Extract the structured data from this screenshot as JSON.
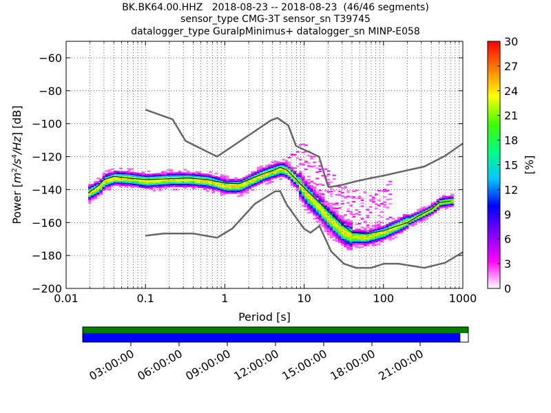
{
  "chart_data": {
    "type": "heatmap",
    "title_lines": [
      "BK.BK64.00.HHZ   2018-08-23 -- 2018-08-23  (46/46 segments)",
      "sensor_type CMG-3T sensor_sn T39745",
      "datalogger_type GuralpMinimus+ datalogger_sn MINP-E058"
    ],
    "xlabel": "Period [s]",
    "ylabel_parts": [
      "Power [",
      "m",
      "2",
      "/",
      "s",
      "4",
      "/",
      "Hz",
      "] [dB]"
    ],
    "xscale": "log",
    "xlim": [
      0.01,
      1000
    ],
    "ylim": [
      -200,
      -50
    ],
    "xtick_values": [
      0.01,
      0.1,
      1,
      10,
      100,
      1000
    ],
    "xtick_labels": [
      "0.01",
      "0.1",
      "1",
      "10",
      "100",
      "1000"
    ],
    "ytick_values": [
      -200,
      -180,
      -160,
      -140,
      -120,
      -100,
      -80,
      -60
    ],
    "ytick_labels": [
      "−200",
      "−180",
      "−160",
      "−140",
      "−120",
      "−100",
      "−80",
      "−60"
    ],
    "grid": true,
    "colorbar": {
      "label": "[%]",
      "range": [
        0,
        30
      ],
      "tick_values": [
        0,
        3,
        6,
        9,
        12,
        15,
        18,
        21,
        24,
        27,
        30
      ],
      "tick_labels": [
        "0",
        "3",
        "6",
        "9",
        "12",
        "15",
        "18",
        "21",
        "24",
        "27",
        "30"
      ],
      "colors": [
        "#ffffff",
        "#ff00ff",
        "#8000ff",
        "#0000ff",
        "#00c8ff",
        "#00ff80",
        "#40ff00",
        "#ffff00",
        "#ff8000",
        "#ff0000"
      ]
    },
    "nhnm": [
      [
        0.1,
        -91.5
      ],
      [
        0.22,
        -97.4
      ],
      [
        0.32,
        -110.5
      ],
      [
        0.8,
        -120
      ],
      [
        3.8,
        -98
      ],
      [
        4.6,
        -96.5
      ],
      [
        6.3,
        -101
      ],
      [
        7.9,
        -113.5
      ],
      [
        15.4,
        -120
      ],
      [
        20,
        -138
      ],
      [
        21,
        -138.5
      ],
      [
        31,
        -137
      ],
      [
        45,
        -135
      ],
      [
        70,
        -133
      ],
      [
        101,
        -131.5
      ],
      [
        154,
        -129.5
      ],
      [
        328,
        -126
      ],
      [
        600,
        -119.5
      ],
      [
        1000,
        -112
      ]
    ],
    "nlnm": [
      [
        0.1,
        -168
      ],
      [
        0.17,
        -166.7
      ],
      [
        0.4,
        -166.7
      ],
      [
        0.8,
        -169.2
      ],
      [
        1.24,
        -163.7
      ],
      [
        2.4,
        -148.6
      ],
      [
        4.3,
        -141.1
      ],
      [
        5,
        -141
      ],
      [
        6,
        -149
      ],
      [
        10,
        -163.8
      ],
      [
        12,
        -166.2
      ],
      [
        15.6,
        -162.1
      ],
      [
        21.9,
        -177.5
      ],
      [
        31.6,
        -185
      ],
      [
        45,
        -187.5
      ],
      [
        70,
        -187.5
      ],
      [
        101,
        -185
      ],
      [
        154,
        -185
      ],
      [
        328,
        -187.5
      ],
      [
        600,
        -184.4
      ],
      [
        1000,
        -178
      ]
    ],
    "mode_curve": [
      [
        0.019,
        -142
      ],
      [
        0.025,
        -139
      ],
      [
        0.03,
        -135
      ],
      [
        0.04,
        -133
      ],
      [
        0.06,
        -133.5
      ],
      [
        0.1,
        -135
      ],
      [
        0.2,
        -134
      ],
      [
        0.35,
        -134
      ],
      [
        0.6,
        -135
      ],
      [
        1,
        -138
      ],
      [
        1.5,
        -138
      ],
      [
        2,
        -135
      ],
      [
        3,
        -131
      ],
      [
        4,
        -129
      ],
      [
        5,
        -127.5
      ],
      [
        6,
        -129
      ],
      [
        8,
        -135
      ],
      [
        10,
        -142
      ],
      [
        15,
        -151
      ],
      [
        20,
        -158
      ],
      [
        30,
        -166
      ],
      [
        40,
        -169
      ],
      [
        60,
        -169
      ],
      [
        100,
        -166
      ],
      [
        150,
        -162
      ],
      [
        200,
        -159
      ],
      [
        300,
        -155
      ],
      [
        400,
        -152
      ],
      [
        500,
        -148
      ],
      [
        700,
        -147
      ]
    ],
    "mean_curve": [
      [
        0.019,
        -142
      ],
      [
        0.025,
        -138
      ],
      [
        0.03,
        -134
      ],
      [
        0.04,
        -132
      ],
      [
        0.06,
        -133
      ],
      [
        0.1,
        -134
      ],
      [
        0.2,
        -133.5
      ],
      [
        0.35,
        -133
      ],
      [
        0.6,
        -134
      ],
      [
        1,
        -136
      ],
      [
        1.5,
        -136.5
      ],
      [
        2,
        -134
      ],
      [
        3,
        -130.5
      ],
      [
        4,
        -128.5
      ],
      [
        5,
        -126.5
      ],
      [
        6,
        -128
      ],
      [
        8,
        -134
      ],
      [
        10,
        -139
      ],
      [
        15,
        -147
      ],
      [
        20,
        -153
      ],
      [
        30,
        -161
      ],
      [
        40,
        -166
      ],
      [
        60,
        -167
      ],
      [
        100,
        -165
      ],
      [
        150,
        -162
      ],
      [
        200,
        -160
      ],
      [
        300,
        -155
      ],
      [
        400,
        -152
      ],
      [
        500,
        -148
      ],
      [
        700,
        -147
      ]
    ],
    "timeline": {
      "ticks": [
        "03:00:00",
        "06:00:00",
        "09:00:00",
        "12:00:00",
        "15:00:00",
        "18:00:00",
        "21:00:00"
      ],
      "tick_hours": [
        3,
        6,
        9,
        12,
        15,
        18,
        21
      ],
      "range_hours": [
        0,
        24
      ],
      "data_coverage_hours": [
        [
          0,
          24
        ]
      ],
      "psd_coverage_hours": [
        [
          0,
          23.5
        ]
      ],
      "data_color": "#008000",
      "psd_color": "#0000ff"
    }
  }
}
